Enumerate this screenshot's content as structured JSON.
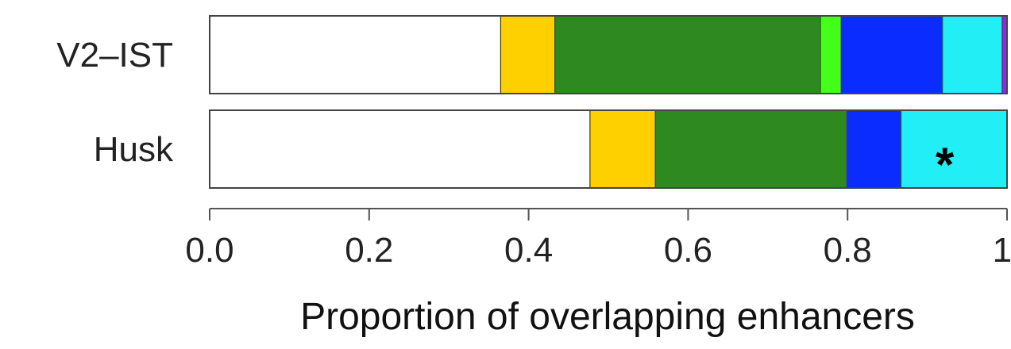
{
  "chart_data": {
    "type": "bar",
    "orientation": "horizontal",
    "stacked": true,
    "title": "",
    "xlabel": "Proportion of overlapping enhancers",
    "ylabel": "",
    "xlim": [
      0,
      1
    ],
    "categories": [
      "V2-IST",
      "Husk"
    ],
    "category_labels": [
      "V2–IST",
      "Husk"
    ],
    "x_ticks": [
      0.0,
      0.2,
      0.4,
      0.6,
      0.8,
      1.0
    ],
    "x_tick_labels": [
      "0.0",
      "0.2",
      "0.4",
      "0.6",
      "0.8",
      "1."
    ],
    "grid": false,
    "legend": "none",
    "series": [
      {
        "color": "#ffffff",
        "values": [
          0.365,
          0.477
        ]
      },
      {
        "color": "#ffd000",
        "values": [
          0.068,
          0.082
        ]
      },
      {
        "color": "#2e8a20",
        "values": [
          0.333,
          0.24
        ]
      },
      {
        "color": "#44ff1a",
        "values": [
          0.026,
          0.0
        ]
      },
      {
        "color": "#0a2cff",
        "values": [
          0.127,
          0.068
        ]
      },
      {
        "color": "#22eef5",
        "values": [
          0.075,
          0.133
        ]
      },
      {
        "color": "#8a2be2",
        "values": [
          0.006,
          0.0
        ]
      }
    ],
    "annotations": [
      {
        "text": "*",
        "category": "Husk",
        "x": 0.922
      }
    ]
  }
}
